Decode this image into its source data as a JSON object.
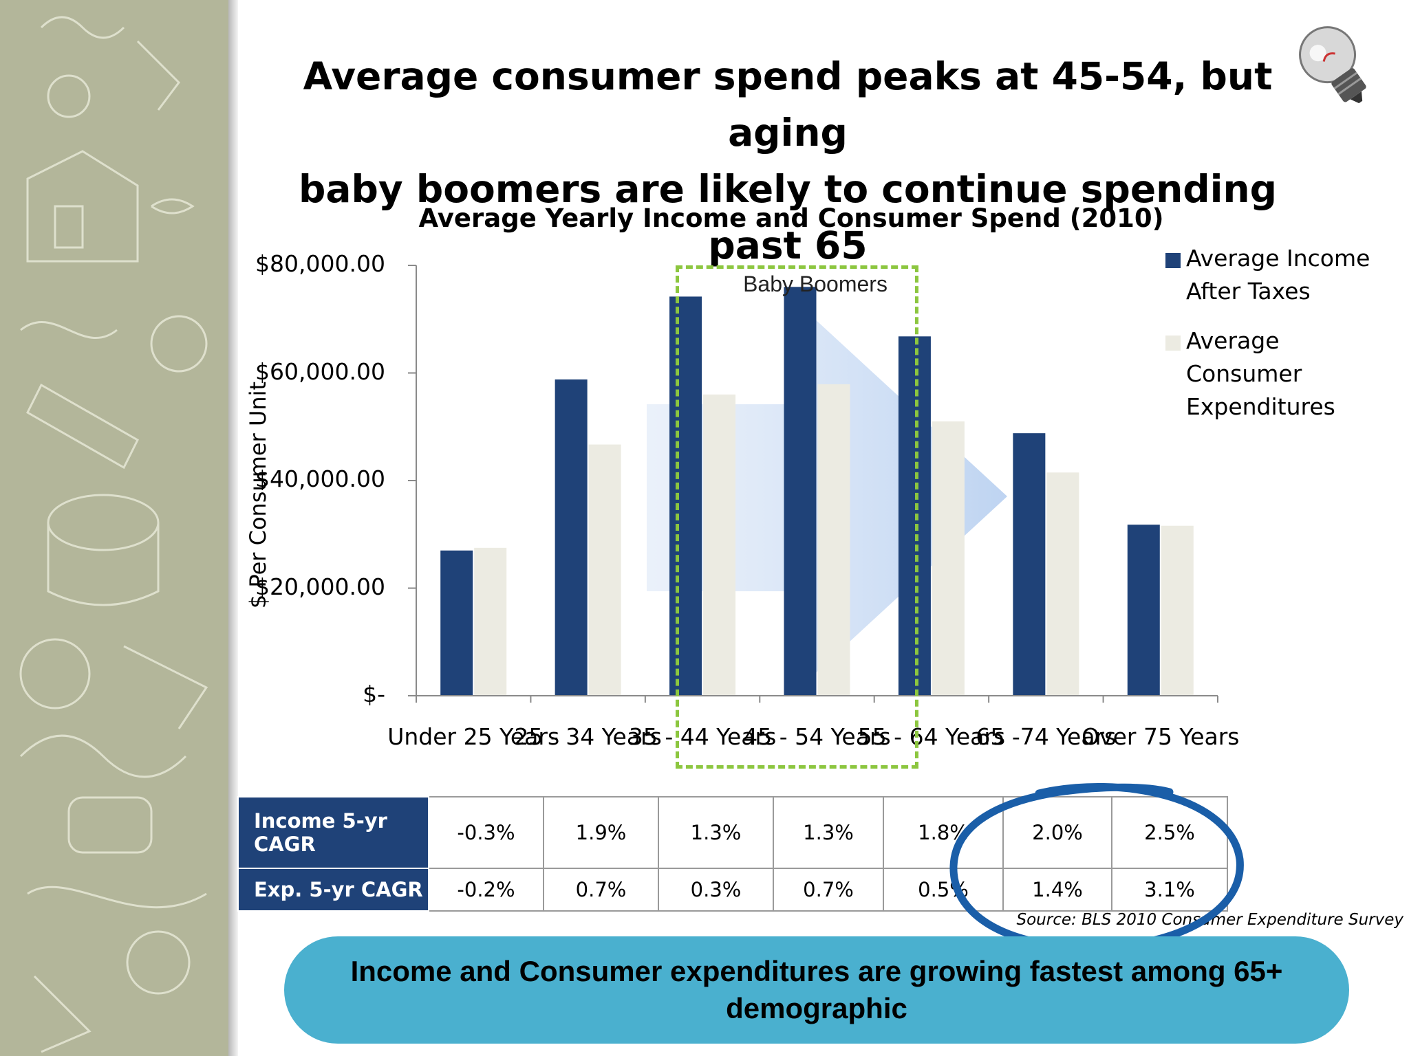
{
  "slide": {
    "title_line1": "Average consumer spend peaks at 45-54, but aging",
    "title_line2": "baby boomers are likely to continue spending past 65",
    "callout": "Income and Consumer expenditures are growing fastest among 65+ demographic",
    "source": "Source: BLS 2010 Consumer Expenditure Survey",
    "boomers_label": "Baby Boomers"
  },
  "colors": {
    "income": "#1f4278",
    "expenditure": "#ecebe2",
    "highlight_box": "#8cc63f",
    "callout": "#4ab0cf",
    "circle": "#1a5ea8"
  },
  "chart_data": {
    "type": "bar",
    "title": "Average Yearly Income and Consumer Spend (2010)",
    "ylabel": "$ Per Consumer Unit",
    "xlabel": "",
    "ylim": [
      0,
      80000
    ],
    "yticks": [
      {
        "value": 80000,
        "label": "$80,000.00"
      },
      {
        "value": 60000,
        "label": "$60,000.00"
      },
      {
        "value": 40000,
        "label": "$40,000.00"
      },
      {
        "value": 20000,
        "label": "$20,000.00"
      },
      {
        "value": 0,
        "label": "$-"
      }
    ],
    "categories": [
      "Under 25 Years",
      "25 - 34 Years",
      "35 - 44 Years",
      "45 - 54 Years",
      "55 - 64 Years",
      "65 -74 Years",
      "Over 75 Years"
    ],
    "series": [
      {
        "name": "Average Income After Taxes",
        "values": [
          27000,
          58800,
          74200,
          76000,
          66800,
          48800,
          31800
        ]
      },
      {
        "name": "Average Consumer Expenditures",
        "values": [
          27500,
          46700,
          56000,
          57900,
          51000,
          41500,
          31600
        ]
      }
    ],
    "legend_position": "right",
    "grid": false
  },
  "table": {
    "rows": [
      {
        "label": "Income 5-yr CAGR",
        "values": [
          "-0.3%",
          "1.9%",
          "1.3%",
          "1.3%",
          "1.8%",
          "2.0%",
          "2.5%"
        ]
      },
      {
        "label": "Exp. 5-yr CAGR",
        "values": [
          "-0.2%",
          "0.7%",
          "0.3%",
          "0.7%",
          "0.5%",
          "1.4%",
          "3.1%"
        ]
      }
    ]
  },
  "icons": {
    "bulb": "lightbulb-icon"
  }
}
